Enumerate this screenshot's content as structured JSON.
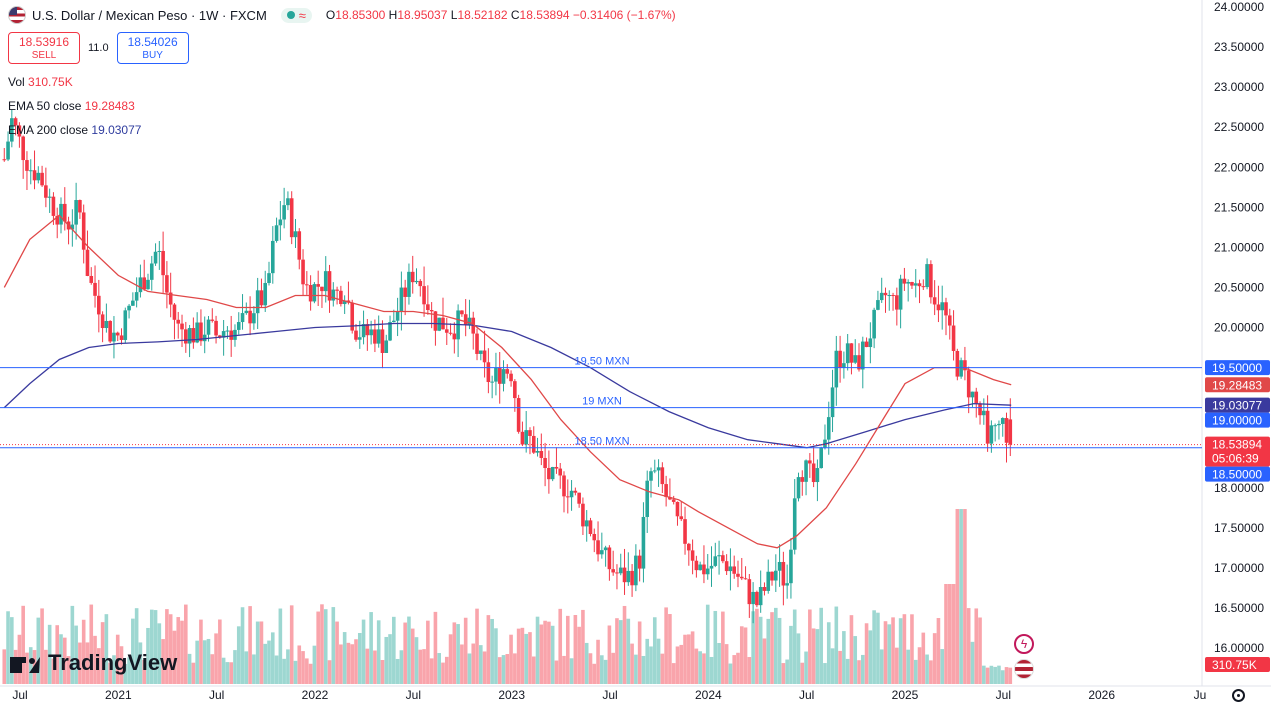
{
  "header": {
    "title": "U.S. Dollar / Mexican Peso · 1W · FXCM",
    "ohlc": {
      "o_label": "O",
      "o": "18.85300",
      "h_label": "H",
      "h": "18.95037",
      "l_label": "L",
      "l": "18.52182",
      "c_label": "C",
      "c": "18.53894",
      "change": "−0.31406 (−1.67%)"
    },
    "status_icon": "wave-icon"
  },
  "trade": {
    "sell_price": "18.53916",
    "sell_label": "SELL",
    "spread": "11.0",
    "buy_price": "18.54026",
    "buy_label": "BUY"
  },
  "indicators": {
    "vol_label": "Vol",
    "vol_value": "310.75K",
    "ema50_label": "EMA 50 close",
    "ema50_value": "19.28483",
    "ema200_label": "EMA 200 close",
    "ema200_value": "19.03077"
  },
  "brand": {
    "name": "TradingView"
  },
  "colors": {
    "up": "#26a69a",
    "down": "#f23645",
    "ema50": "#e04848",
    "ema200": "#3a3a9e",
    "hline": "#2962ff",
    "price_tag": "#f23645",
    "level_tag": "#2962ff"
  },
  "chart_data": {
    "type": "candlestick",
    "symbol": "USD/MXN",
    "timeframe": "1W",
    "ylim": [
      15.9,
      24.05
    ],
    "y_ticks": [
      "24.00000",
      "23.50000",
      "23.00000",
      "22.50000",
      "22.00000",
      "21.50000",
      "21.00000",
      "20.50000",
      "20.00000",
      "19.50000",
      "19.00000",
      "18.50000",
      "18.00000",
      "17.50000",
      "17.00000",
      "16.50000",
      "16.00000"
    ],
    "x_ticks": [
      {
        "label": "Jul",
        "t": 2020.5
      },
      {
        "label": "2021",
        "t": 2021.0
      },
      {
        "label": "Jul",
        "t": 2021.5
      },
      {
        "label": "2022",
        "t": 2022.0
      },
      {
        "label": "Jul",
        "t": 2022.5
      },
      {
        "label": "2023",
        "t": 2023.0
      },
      {
        "label": "Jul",
        "t": 2023.5
      },
      {
        "label": "2024",
        "t": 2024.0
      },
      {
        "label": "Jul",
        "t": 2024.5
      },
      {
        "label": "2025",
        "t": 2025.0
      },
      {
        "label": "Jul",
        "t": 2025.5
      },
      {
        "label": "2026",
        "t": 2026.0
      },
      {
        "label": "Ju",
        "t": 2026.5
      }
    ],
    "x_range": [
      2020.48,
      2026.63
    ],
    "candles_t_range": [
      2020.42,
      2025.54
    ],
    "close_path": [
      [
        2020.42,
        22.1
      ],
      [
        2020.46,
        22.6
      ],
      [
        2020.5,
        22.3
      ],
      [
        2020.55,
        22.0
      ],
      [
        2020.6,
        21.9
      ],
      [
        2020.65,
        21.6
      ],
      [
        2020.7,
        21.4
      ],
      [
        2020.75,
        21.3
      ],
      [
        2020.8,
        21.5
      ],
      [
        2020.85,
        20.6
      ],
      [
        2020.9,
        20.3
      ],
      [
        2020.95,
        19.95
      ],
      [
        2021.0,
        19.9
      ],
      [
        2021.05,
        20.2
      ],
      [
        2021.1,
        20.5
      ],
      [
        2021.15,
        20.7
      ],
      [
        2021.2,
        21.0
      ],
      [
        2021.25,
        20.4
      ],
      [
        2021.3,
        20.0
      ],
      [
        2021.35,
        19.95
      ],
      [
        2021.4,
        19.9
      ],
      [
        2021.45,
        20.0
      ],
      [
        2021.5,
        19.9
      ],
      [
        2021.55,
        20.0
      ],
      [
        2021.6,
        19.95
      ],
      [
        2021.65,
        20.1
      ],
      [
        2021.7,
        20.3
      ],
      [
        2021.75,
        20.4
      ],
      [
        2021.8,
        21.2
      ],
      [
        2021.85,
        21.6
      ],
      [
        2021.9,
        21.1
      ],
      [
        2021.95,
        20.5
      ],
      [
        2022.0,
        20.5
      ],
      [
        2022.05,
        20.6
      ],
      [
        2022.1,
        20.4
      ],
      [
        2022.15,
        20.5
      ],
      [
        2022.2,
        20.0
      ],
      [
        2022.25,
        19.9
      ],
      [
        2022.3,
        19.95
      ],
      [
        2022.35,
        19.8
      ],
      [
        2022.4,
        20.1
      ],
      [
        2022.45,
        20.4
      ],
      [
        2022.5,
        20.7
      ],
      [
        2022.55,
        20.5
      ],
      [
        2022.6,
        20.1
      ],
      [
        2022.65,
        20.05
      ],
      [
        2022.7,
        20.0
      ],
      [
        2022.75,
        20.1
      ],
      [
        2022.8,
        19.9
      ],
      [
        2022.85,
        19.5
      ],
      [
        2022.9,
        19.3
      ],
      [
        2022.95,
        19.5
      ],
      [
        2023.0,
        19.45
      ],
      [
        2023.05,
        18.6
      ],
      [
        2023.1,
        18.6
      ],
      [
        2023.15,
        18.3
      ],
      [
        2023.2,
        18.1
      ],
      [
        2023.25,
        18.05
      ],
      [
        2023.3,
        18.0
      ],
      [
        2023.35,
        17.7
      ],
      [
        2023.4,
        17.5
      ],
      [
        2023.45,
        17.2
      ],
      [
        2023.5,
        17.0
      ],
      [
        2023.55,
        16.9
      ],
      [
        2023.6,
        16.9
      ],
      [
        2023.65,
        17.1
      ],
      [
        2023.7,
        18.2
      ],
      [
        2023.75,
        18.1
      ],
      [
        2023.8,
        17.8
      ],
      [
        2023.85,
        17.5
      ],
      [
        2023.9,
        17.3
      ],
      [
        2023.95,
        17.0
      ],
      [
        2024.0,
        17.0
      ],
      [
        2024.05,
        17.1
      ],
      [
        2024.1,
        17.05
      ],
      [
        2024.15,
        16.9
      ],
      [
        2024.2,
        16.7
      ],
      [
        2024.25,
        16.55
      ],
      [
        2024.3,
        16.8
      ],
      [
        2024.35,
        17.0
      ],
      [
        2024.4,
        16.8
      ],
      [
        2024.45,
        18.3
      ],
      [
        2024.5,
        18.2
      ],
      [
        2024.55,
        18.0
      ],
      [
        2024.6,
        18.8
      ],
      [
        2024.65,
        19.6
      ],
      [
        2024.7,
        19.7
      ],
      [
        2024.75,
        19.5
      ],
      [
        2024.8,
        19.8
      ],
      [
        2024.85,
        20.1
      ],
      [
        2024.9,
        20.4
      ],
      [
        2024.95,
        20.3
      ],
      [
        2025.0,
        20.6
      ],
      [
        2025.05,
        20.5
      ],
      [
        2025.1,
        20.7
      ],
      [
        2025.15,
        20.4
      ],
      [
        2025.2,
        20.2
      ],
      [
        2025.25,
        19.6
      ],
      [
        2025.3,
        19.4
      ],
      [
        2025.35,
        19.1
      ],
      [
        2025.4,
        18.8
      ],
      [
        2025.45,
        18.6
      ],
      [
        2025.5,
        18.8
      ],
      [
        2025.54,
        18.54
      ]
    ],
    "ema50_path": [
      [
        2020.42,
        20.5
      ],
      [
        2020.55,
        21.1
      ],
      [
        2020.7,
        21.4
      ],
      [
        2020.85,
        21.0
      ],
      [
        2021.0,
        20.65
      ],
      [
        2021.15,
        20.45
      ],
      [
        2021.3,
        20.4
      ],
      [
        2021.45,
        20.35
      ],
      [
        2021.6,
        20.25
      ],
      [
        2021.75,
        20.25
      ],
      [
        2021.9,
        20.4
      ],
      [
        2022.05,
        20.4
      ],
      [
        2022.2,
        20.3
      ],
      [
        2022.35,
        20.2
      ],
      [
        2022.5,
        20.2
      ],
      [
        2022.65,
        20.15
      ],
      [
        2022.8,
        20.05
      ],
      [
        2022.95,
        19.75
      ],
      [
        2023.1,
        19.35
      ],
      [
        2023.25,
        18.85
      ],
      [
        2023.4,
        18.45
      ],
      [
        2023.55,
        18.1
      ],
      [
        2023.7,
        17.95
      ],
      [
        2023.85,
        17.85
      ],
      [
        2023.95,
        17.7
      ],
      [
        2024.1,
        17.5
      ],
      [
        2024.25,
        17.3
      ],
      [
        2024.35,
        17.25
      ],
      [
        2024.45,
        17.4
      ],
      [
        2024.6,
        17.75
      ],
      [
        2024.75,
        18.3
      ],
      [
        2024.9,
        18.9
      ],
      [
        2025.0,
        19.3
      ],
      [
        2025.15,
        19.5
      ],
      [
        2025.3,
        19.5
      ],
      [
        2025.45,
        19.35
      ],
      [
        2025.54,
        19.28483
      ]
    ],
    "ema200_path": [
      [
        2020.42,
        19.0
      ],
      [
        2020.55,
        19.3
      ],
      [
        2020.7,
        19.6
      ],
      [
        2020.85,
        19.75
      ],
      [
        2021.0,
        19.8
      ],
      [
        2021.2,
        19.82
      ],
      [
        2021.4,
        19.85
      ],
      [
        2021.6,
        19.9
      ],
      [
        2021.8,
        19.95
      ],
      [
        2022.0,
        20.0
      ],
      [
        2022.2,
        20.02
      ],
      [
        2022.4,
        20.05
      ],
      [
        2022.6,
        20.05
      ],
      [
        2022.8,
        20.03
      ],
      [
        2023.0,
        19.95
      ],
      [
        2023.2,
        19.75
      ],
      [
        2023.4,
        19.5
      ],
      [
        2023.6,
        19.2
      ],
      [
        2023.8,
        18.95
      ],
      [
        2024.0,
        18.75
      ],
      [
        2024.2,
        18.6
      ],
      [
        2024.35,
        18.55
      ],
      [
        2024.5,
        18.5
      ],
      [
        2024.6,
        18.55
      ],
      [
        2024.8,
        18.7
      ],
      [
        2025.0,
        18.85
      ],
      [
        2025.2,
        18.97
      ],
      [
        2025.35,
        19.05
      ],
      [
        2025.54,
        19.03077
      ]
    ],
    "horizontal_lines": [
      {
        "label": "19.50 MXN",
        "value": 19.5
      },
      {
        "label": "19 MXN",
        "value": 19.0
      },
      {
        "label": "18.50 MXN",
        "value": 18.5
      }
    ],
    "axis_tags": [
      {
        "text": "19.50000",
        "value": 19.5,
        "kind": "level"
      },
      {
        "text": "19.28483",
        "value": 19.28483,
        "kind": "ema50"
      },
      {
        "text": "19.03077",
        "value": 19.03077,
        "kind": "ema200"
      },
      {
        "text": "19.00000",
        "value": 19.0,
        "kind": "level"
      },
      {
        "text": "18.53894",
        "sub": "05:06:39",
        "value": 18.53894,
        "kind": "price"
      },
      {
        "text": "18.50000",
        "value": 18.5,
        "kind": "level"
      }
    ],
    "volume_tag": "310.75K",
    "last_price": 18.53894
  }
}
